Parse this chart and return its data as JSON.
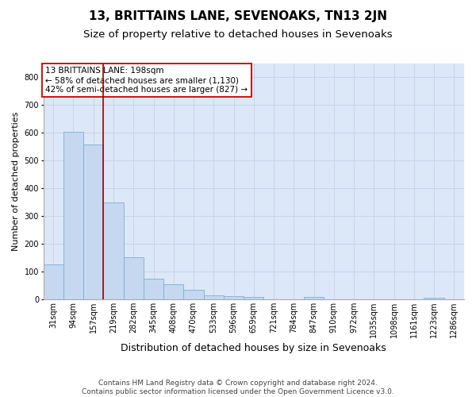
{
  "title": "13, BRITTAINS LANE, SEVENOAKS, TN13 2JN",
  "subtitle": "Size of property relative to detached houses in Sevenoaks",
  "xlabel": "Distribution of detached houses by size in Sevenoaks",
  "ylabel": "Number of detached properties",
  "categories": [
    "31sqm",
    "94sqm",
    "157sqm",
    "219sqm",
    "282sqm",
    "345sqm",
    "408sqm",
    "470sqm",
    "533sqm",
    "596sqm",
    "659sqm",
    "721sqm",
    "784sqm",
    "847sqm",
    "910sqm",
    "972sqm",
    "1035sqm",
    "1098sqm",
    "1161sqm",
    "1223sqm",
    "1286sqm"
  ],
  "values": [
    125,
    603,
    557,
    348,
    150,
    75,
    55,
    33,
    14,
    12,
    7,
    0,
    0,
    7,
    0,
    0,
    0,
    0,
    0,
    5,
    0
  ],
  "bar_color": "#c5d8ef",
  "bar_edge_color": "#7bafd4",
  "property_line_x": 2.5,
  "property_line_color": "#990000",
  "annotation_line1": "13 BRITTAINS LANE: 198sqm",
  "annotation_line2": "← 58% of detached houses are smaller (1,130)",
  "annotation_line3": "42% of semi-detached houses are larger (827) →",
  "annotation_box_facecolor": "#ffffff",
  "annotation_box_edgecolor": "#cc0000",
  "ylim": [
    0,
    850
  ],
  "yticks": [
    0,
    100,
    200,
    300,
    400,
    500,
    600,
    700,
    800
  ],
  "grid_color": "#c8d4e8",
  "plot_bg_color": "#dce8f8",
  "fig_bg_color": "#ffffff",
  "title_fontsize": 11,
  "subtitle_fontsize": 9.5,
  "xlabel_fontsize": 9,
  "ylabel_fontsize": 8,
  "tick_fontsize": 7,
  "annotation_fontsize": 7.5,
  "footer_fontsize": 6.5,
  "footer": "Contains HM Land Registry data © Crown copyright and database right 2024.\nContains public sector information licensed under the Open Government Licence v3.0."
}
